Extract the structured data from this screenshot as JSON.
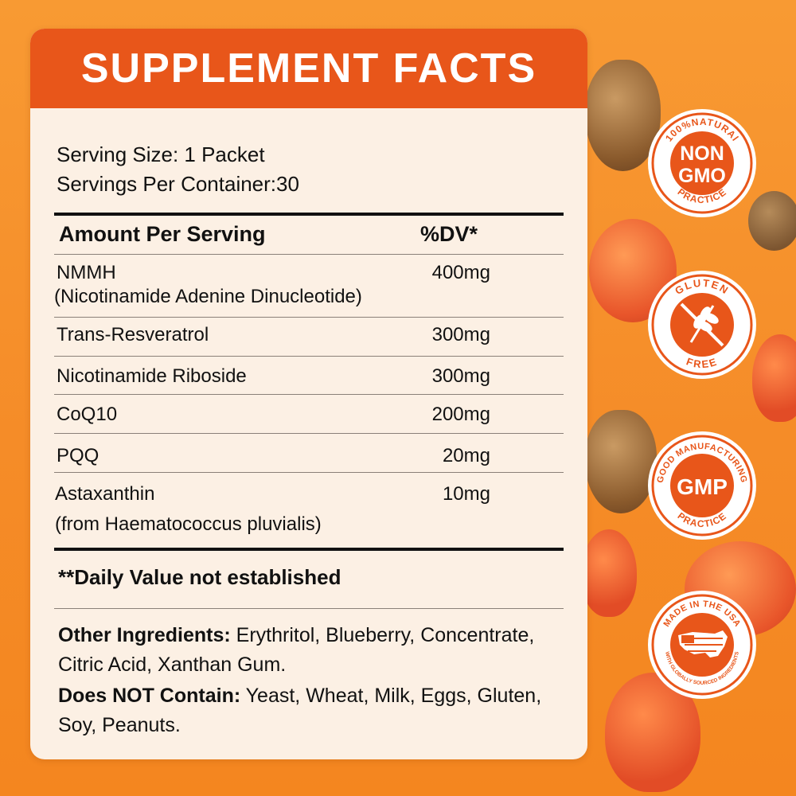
{
  "panel": {
    "title": "SUPPLEMENT FACTS",
    "serving_size": "Serving Size: 1 Packet",
    "servings_per_container": "Servings Per Container:30",
    "header": {
      "amount": "Amount Per Serving",
      "dv": "%DV*"
    },
    "rows": [
      {
        "name": "NMMH",
        "sub": "(Nicotinamide Adenine Dinucleotide)",
        "amount": "400mg"
      },
      {
        "name": "Trans-Resveratrol",
        "amount": "300mg"
      },
      {
        "name": "Nicotinamide Riboside",
        "amount": "300mg"
      },
      {
        "name": "CoQ10",
        "amount": "200mg"
      },
      {
        "name": "PQQ",
        "amount": "20mg"
      },
      {
        "name": "Astaxanthin",
        "sub": "(from Haematococcus pluvialis)",
        "amount": "10mg"
      }
    ],
    "note": "**Daily Value not established",
    "other_label": "Other Ingredients:",
    "other_value": "Erythritol, Blueberry, Concentrate, Citric Acid, Xanthan Gum.",
    "contain_label": "Does NOT Contain:",
    "contain_value": "Yeast, Wheat, Milk, Eggs, Gluten, Soy, Peanuts."
  },
  "badges": {
    "non_gmo": {
      "top": "100%NATURAl",
      "line1": "NON",
      "line2": "GMO",
      "bottom": "PRACTICE"
    },
    "gluten": {
      "top": "GLUTEN",
      "bottom": "FREE"
    },
    "gmp": {
      "top": "GOOD MANUFACTURING",
      "center": "GMP",
      "bottom": "PRACTICE"
    },
    "usa": {
      "top": "MADE IN THE USA",
      "bottom": "WITH GLOBALLY SOURCED INGREDIENTS"
    }
  },
  "colors": {
    "accent": "#e8561a",
    "background": "#f7922d",
    "panel": "#fcf0e4"
  }
}
